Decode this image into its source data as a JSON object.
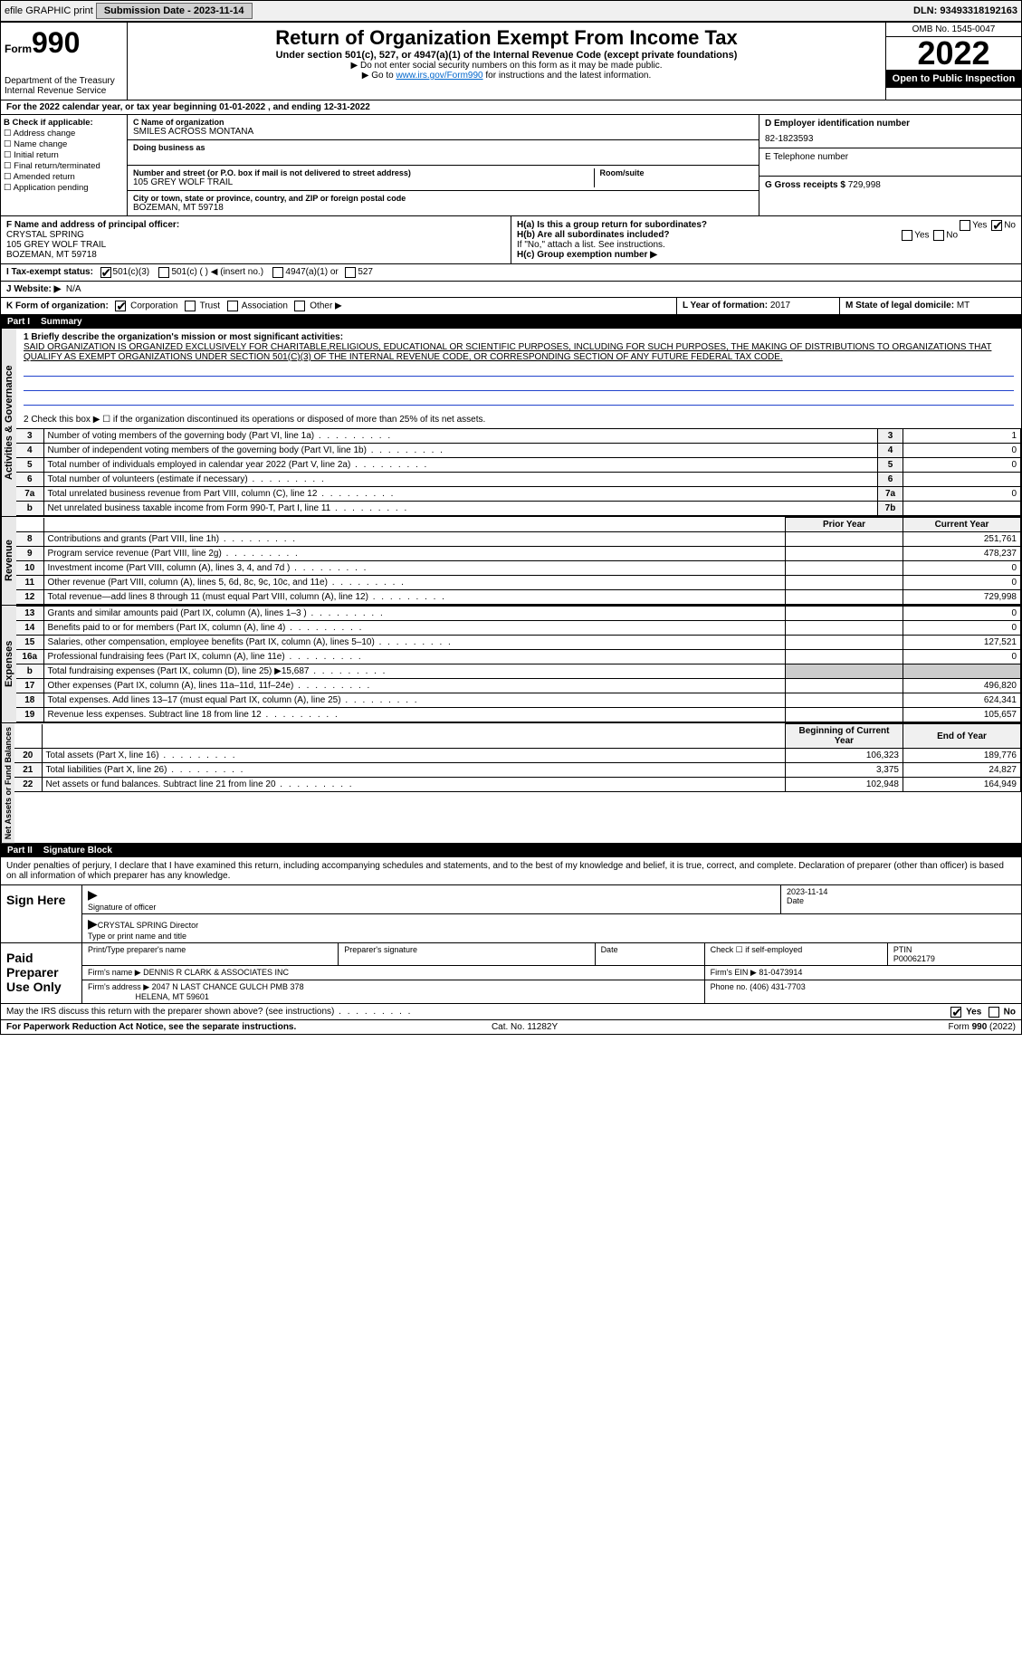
{
  "topbar": {
    "efile": "efile GRAPHIC print",
    "submission_label": "Submission Date - 2023-11-14",
    "dln": "DLN: 93493318192163"
  },
  "header": {
    "form_label": "Form",
    "form_num": "990",
    "dept": "Department of the Treasury",
    "irs": "Internal Revenue Service",
    "title": "Return of Organization Exempt From Income Tax",
    "subtitle": "Under section 501(c), 527, or 4947(a)(1) of the Internal Revenue Code (except private foundations)",
    "note1": "▶ Do not enter social security numbers on this form as it may be made public.",
    "note2_pre": "▶ Go to ",
    "note2_link": "www.irs.gov/Form990",
    "note2_post": " for instructions and the latest information.",
    "omb": "OMB No. 1545-0047",
    "year": "2022",
    "open": "Open to Public Inspection"
  },
  "line_a": "For the 2022 calendar year, or tax year beginning 01-01-2022   , and ending 12-31-2022",
  "box_b": {
    "label": "B Check if applicable:",
    "opts": [
      "Address change",
      "Name change",
      "Initial return",
      "Final return/terminated",
      "Amended return",
      "Application pending"
    ]
  },
  "box_c": {
    "name_label": "C Name of organization",
    "name": "SMILES ACROSS MONTANA",
    "dba_label": "Doing business as",
    "addr_label": "Number and street (or P.O. box if mail is not delivered to street address)",
    "room_label": "Room/suite",
    "addr": "105 GREY WOLF TRAIL",
    "city_label": "City or town, state or province, country, and ZIP or foreign postal code",
    "city": "BOZEMAN, MT  59718"
  },
  "box_d": {
    "label": "D Employer identification number",
    "val": "82-1823593"
  },
  "box_e": {
    "label": "E Telephone number"
  },
  "box_g": {
    "label": "G Gross receipts $",
    "val": "729,998"
  },
  "box_f": {
    "label": "F  Name and address of principal officer:",
    "name": "CRYSTAL SPRING",
    "addr1": "105 GREY WOLF TRAIL",
    "addr2": "BOZEMAN, MT  59718"
  },
  "box_h": {
    "a": "H(a)  Is this a group return for subordinates?",
    "b": "H(b)  Are all subordinates included?",
    "note": "If \"No,\" attach a list. See instructions.",
    "c": "H(c)  Group exemption number ▶",
    "yes": "Yes",
    "no": "No"
  },
  "box_i": {
    "label": "I  Tax-exempt status:",
    "o1": "501(c)(3)",
    "o2": "501(c) (  ) ◀ (insert no.)",
    "o3": "4947(a)(1) or",
    "o4": "527"
  },
  "box_j": {
    "label": "J  Website: ▶",
    "val": "N/A"
  },
  "box_k": {
    "label": "K Form of organization:",
    "o1": "Corporation",
    "o2": "Trust",
    "o3": "Association",
    "o4": "Other ▶"
  },
  "box_l": {
    "label": "L Year of formation:",
    "val": "2017"
  },
  "box_m": {
    "label": "M State of legal domicile:",
    "val": "MT"
  },
  "part1": {
    "title": "Part I",
    "name": "Summary",
    "q1": "1  Briefly describe the organization's mission or most significant activities:",
    "mission": "SAID ORGANIZATION IS ORGANIZED EXCLUSIVELY FOR CHARITABLE,RELIGIOUS, EDUCATIONAL OR SCIENTIFIC PURPOSES, INCLUDING FOR SUCH PURPOSES, THE MAKING OF DISTRIBUTIONS TO ORGANIZATIONS THAT QUALIFY AS EXEMPT ORGANIZATIONS UNDER SECTION 501(C)(3) OF THE INTERNAL REVENUE CODE, OR CORRESPONDING SECTION OF ANY FUTURE FEDERAL TAX CODE.",
    "q2": "2   Check this box ▶ ☐  if the organization discontinued its operations or disposed of more than 25% of its net assets.",
    "gov_rows": [
      {
        "n": "3",
        "t": "Number of voting members of the governing body (Part VI, line 1a)",
        "b": "3",
        "v": "1"
      },
      {
        "n": "4",
        "t": "Number of independent voting members of the governing body (Part VI, line 1b)",
        "b": "4",
        "v": "0"
      },
      {
        "n": "5",
        "t": "Total number of individuals employed in calendar year 2022 (Part V, line 2a)",
        "b": "5",
        "v": "0"
      },
      {
        "n": "6",
        "t": "Total number of volunteers (estimate if necessary)",
        "b": "6",
        "v": ""
      },
      {
        "n": "7a",
        "t": "Total unrelated business revenue from Part VIII, column (C), line 12",
        "b": "7a",
        "v": "0"
      },
      {
        "n": "b",
        "t": "Net unrelated business taxable income from Form 990-T, Part I, line 11",
        "b": "7b",
        "v": ""
      }
    ],
    "prior": "Prior Year",
    "current": "Current Year",
    "rev_rows": [
      {
        "n": "8",
        "t": "Contributions and grants (Part VIII, line 1h)",
        "p": "",
        "c": "251,761"
      },
      {
        "n": "9",
        "t": "Program service revenue (Part VIII, line 2g)",
        "p": "",
        "c": "478,237"
      },
      {
        "n": "10",
        "t": "Investment income (Part VIII, column (A), lines 3, 4, and 7d )",
        "p": "",
        "c": "0"
      },
      {
        "n": "11",
        "t": "Other revenue (Part VIII, column (A), lines 5, 6d, 8c, 9c, 10c, and 11e)",
        "p": "",
        "c": "0"
      },
      {
        "n": "12",
        "t": "Total revenue—add lines 8 through 11 (must equal Part VIII, column (A), line 12)",
        "p": "",
        "c": "729,998"
      }
    ],
    "exp_rows": [
      {
        "n": "13",
        "t": "Grants and similar amounts paid (Part IX, column (A), lines 1–3 )",
        "p": "",
        "c": "0"
      },
      {
        "n": "14",
        "t": "Benefits paid to or for members (Part IX, column (A), line 4)",
        "p": "",
        "c": "0"
      },
      {
        "n": "15",
        "t": "Salaries, other compensation, employee benefits (Part IX, column (A), lines 5–10)",
        "p": "",
        "c": "127,521"
      },
      {
        "n": "16a",
        "t": "Professional fundraising fees (Part IX, column (A), line 11e)",
        "p": "",
        "c": "0"
      },
      {
        "n": "b",
        "t": "Total fundraising expenses (Part IX, column (D), line 25) ▶15,687",
        "p": "SHADE",
        "c": "SHADE"
      },
      {
        "n": "17",
        "t": "Other expenses (Part IX, column (A), lines 11a–11d, 11f–24e)",
        "p": "",
        "c": "496,820"
      },
      {
        "n": "18",
        "t": "Total expenses. Add lines 13–17 (must equal Part IX, column (A), line 25)",
        "p": "",
        "c": "624,341"
      },
      {
        "n": "19",
        "t": "Revenue less expenses. Subtract line 18 from line 12",
        "p": "",
        "c": "105,657"
      }
    ],
    "boy": "Beginning of Current Year",
    "eoy": "End of Year",
    "net_rows": [
      {
        "n": "20",
        "t": "Total assets (Part X, line 16)",
        "p": "106,323",
        "c": "189,776"
      },
      {
        "n": "21",
        "t": "Total liabilities (Part X, line 26)",
        "p": "3,375",
        "c": "24,827"
      },
      {
        "n": "22",
        "t": "Net assets or fund balances. Subtract line 21 from line 20",
        "p": "102,948",
        "c": "164,949"
      }
    ],
    "side_gov": "Activities & Governance",
    "side_rev": "Revenue",
    "side_exp": "Expenses",
    "side_net": "Net Assets or Fund Balances"
  },
  "part2": {
    "title": "Part II",
    "name": "Signature Block",
    "decl": "Under penalties of perjury, I declare that I have examined this return, including accompanying schedules and statements, and to the best of my knowledge and belief, it is true, correct, and complete. Declaration of preparer (other than officer) is based on all information of which preparer has any knowledge.",
    "sign_here": "Sign Here",
    "sig_officer": "Signature of officer",
    "date": "Date",
    "date_val": "2023-11-14",
    "name_title": "CRYSTAL SPRING  Director",
    "name_label": "Type or print name and title",
    "paid": "Paid Preparer Use Only",
    "prep_name": "Print/Type preparer's name",
    "prep_sig": "Preparer's signature",
    "check_se": "Check ☐ if self-employed",
    "ptin_l": "PTIN",
    "ptin": "P00062179",
    "firm_name_l": "Firm's name  ▶",
    "firm_name": "DENNIS R CLARK & ASSOCIATES INC",
    "firm_ein_l": "Firm's EIN ▶",
    "firm_ein": "81-0473914",
    "firm_addr_l": "Firm's address ▶",
    "firm_addr1": "2047 N LAST CHANCE GULCH PMB 378",
    "firm_addr2": "HELENA, MT  59601",
    "phone_l": "Phone no.",
    "phone": "(406) 431-7703",
    "discuss": "May the IRS discuss this return with the preparer shown above? (see instructions)",
    "yes": "Yes",
    "no": "No"
  },
  "footer": {
    "left": "For Paperwork Reduction Act Notice, see the separate instructions.",
    "mid": "Cat. No. 11282Y",
    "right": "Form 990 (2022)"
  }
}
